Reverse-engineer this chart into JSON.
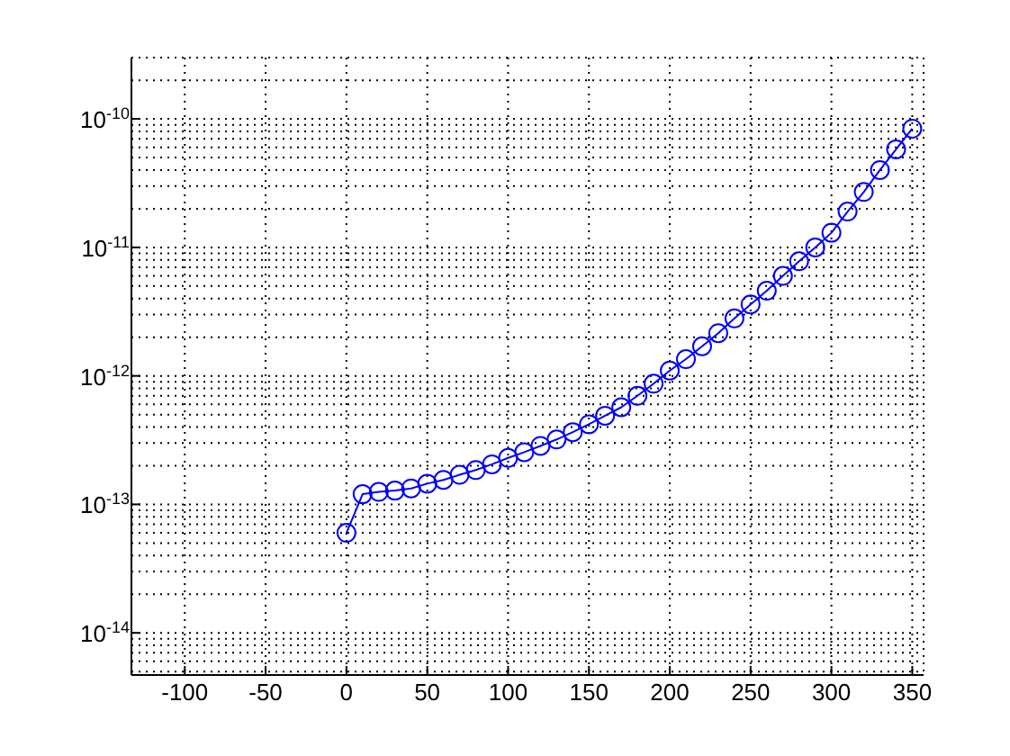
{
  "chart_data": {
    "type": "line",
    "log": "y",
    "grid": true,
    "marker": "circle",
    "line_style": "solid",
    "x": [
      0,
      10,
      20,
      30,
      40,
      50,
      60,
      70,
      80,
      90,
      100,
      110,
      120,
      130,
      140,
      150,
      160,
      170,
      180,
      190,
      200,
      210,
      220,
      230,
      240,
      250,
      260,
      270,
      280,
      290,
      300,
      310,
      320,
      330,
      340,
      350
    ],
    "series": [
      {
        "color": "#0000ff",
        "values": [
          6e-14,
          1.2e-13,
          1.25e-13,
          1.28e-13,
          1.33e-13,
          1.45e-13,
          1.55e-13,
          1.7e-13,
          1.85e-13,
          2.05e-13,
          2.3e-13,
          2.55e-13,
          2.85e-13,
          3.2e-13,
          3.65e-13,
          4.2e-13,
          4.9e-13,
          5.7e-13,
          7e-13,
          8.7e-13,
          1.1e-12,
          1.35e-12,
          1.7e-12,
          2.15e-12,
          2.8e-12,
          3.6e-12,
          4.6e-12,
          6e-12,
          7.8e-12,
          1e-11,
          1.3e-11,
          1.9e-11,
          2.7e-11,
          4e-11,
          5.8e-11,
          8.4e-11
        ]
      }
    ],
    "xlim": [
      -133,
      357
    ],
    "xticks": [
      -100,
      -50,
      0,
      50,
      100,
      150,
      200,
      250,
      300,
      350
    ],
    "ylim": [
      4.7e-15,
      3e-10
    ],
    "yticks": [
      {
        "value": 1e-14,
        "label": "10$^{-14}$"
      },
      {
        "value": 1e-13,
        "label": "10$^{-13}$"
      },
      {
        "value": 1e-12,
        "label": "10$^{-12}$"
      },
      {
        "value": 1e-11,
        "label": "10$^{-11}$"
      },
      {
        "value": 1e-10,
        "label": "10$^{-10}$"
      }
    ]
  }
}
